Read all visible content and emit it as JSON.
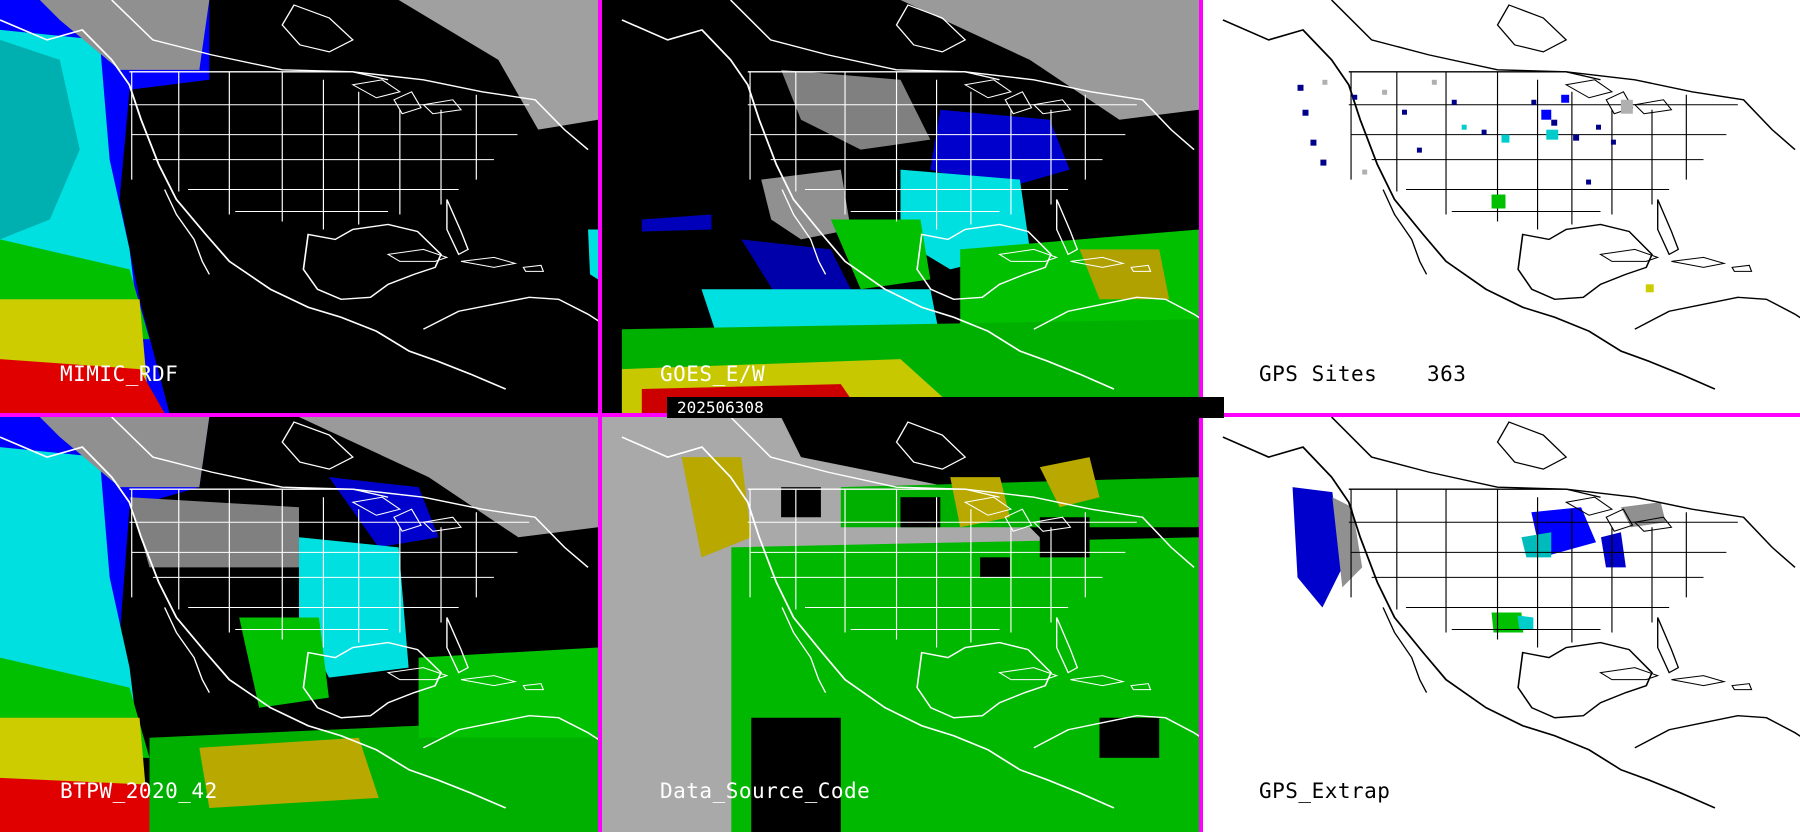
{
  "timestamp": "202506308",
  "panels": {
    "p1": {
      "label": "MIMIC_RDF"
    },
    "p2": {
      "label": "GOES_E/W"
    },
    "p3": {
      "label": "GPS Sites",
      "count": "363"
    },
    "p4": {
      "label": "BTPW_2020_42"
    },
    "p5": {
      "label": "Data_Source_Code"
    },
    "p6": {
      "label": "GPS_Extrap"
    }
  },
  "colors": {
    "separator": "#ff00ff",
    "land_outline_dark": "#ffffff",
    "land_outline_light": "#000000",
    "pw_scale": [
      "#808080",
      "#00008b",
      "#0000ff",
      "#00ffff",
      "#00c000",
      "#aaaa00",
      "#ffff00",
      "#ff0000"
    ]
  }
}
